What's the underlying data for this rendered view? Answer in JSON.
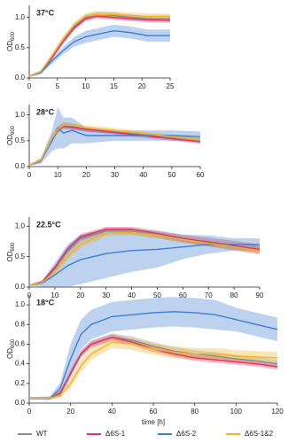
{
  "chart_data": [
    {
      "type": "line",
      "title": "37°C",
      "y_label": "OD",
      "y_label_sub": "600",
      "x": [
        0,
        2,
        4,
        6,
        8,
        10,
        12,
        15,
        18,
        21,
        25
      ],
      "xlim": [
        0,
        25
      ],
      "xticks": [
        0,
        5,
        10,
        15,
        20,
        25
      ],
      "ylim": [
        0,
        1.2
      ],
      "yticks": [
        {
          "value": 0,
          "label": "0.0"
        },
        {
          "value": 0.5,
          "label": "0.5"
        },
        {
          "value": 1,
          "label": "1.0"
        }
      ],
      "series": [
        {
          "name": "WT",
          "color": "#8c8c8c",
          "values": [
            0.03,
            0.1,
            0.35,
            0.62,
            0.85,
            1.0,
            1.05,
            1.03,
            1.0,
            0.98,
            0.98
          ],
          "error": [
            0.01,
            0.02,
            0.04,
            0.05,
            0.05,
            0.05,
            0.05,
            0.05,
            0.05,
            0.04,
            0.04
          ]
        },
        {
          "name": "Δ6S-1",
          "color": "#e0336a",
          "values": [
            0.03,
            0.1,
            0.33,
            0.6,
            0.83,
            0.98,
            1.02,
            1.0,
            0.98,
            0.96,
            0.95
          ],
          "error": [
            0.01,
            0.02,
            0.03,
            0.04,
            0.04,
            0.04,
            0.04,
            0.04,
            0.04,
            0.04,
            0.04
          ]
        },
        {
          "name": "Δ6S-2",
          "color": "#3f7fd0",
          "values": [
            0.03,
            0.08,
            0.28,
            0.45,
            0.6,
            0.68,
            0.72,
            0.78,
            0.75,
            0.7,
            0.7
          ],
          "error": [
            0.01,
            0.02,
            0.05,
            0.06,
            0.08,
            0.1,
            0.1,
            0.1,
            0.1,
            0.1,
            0.1
          ]
        },
        {
          "name": "Δ6S-1&2",
          "color": "#f0b429",
          "values": [
            0.03,
            0.1,
            0.36,
            0.64,
            0.88,
            1.02,
            1.05,
            1.05,
            1.03,
            1.02,
            1.02
          ],
          "error": [
            0.01,
            0.02,
            0.04,
            0.05,
            0.05,
            0.05,
            0.05,
            0.05,
            0.05,
            0.05,
            0.05
          ]
        }
      ]
    },
    {
      "type": "line",
      "title": "28°C",
      "y_label": "OD",
      "y_label_sub": "600",
      "x": [
        0,
        4,
        8,
        10,
        12,
        15,
        20,
        30,
        40,
        50,
        60
      ],
      "xlim": [
        0,
        60
      ],
      "xticks": [
        0,
        10,
        20,
        30,
        40,
        50,
        60
      ],
      "ylim": [
        0,
        1.2
      ],
      "yticks": [
        {
          "value": 0,
          "label": "0.0"
        },
        {
          "value": 0.5,
          "label": "0.5"
        },
        {
          "value": 1,
          "label": "1.0"
        }
      ],
      "series": [
        {
          "name": "WT",
          "color": "#8c8c8c",
          "values": [
            0.03,
            0.12,
            0.55,
            0.72,
            0.8,
            0.78,
            0.72,
            0.67,
            0.62,
            0.57,
            0.52
          ],
          "error": [
            0.01,
            0.03,
            0.06,
            0.06,
            0.06,
            0.05,
            0.05,
            0.04,
            0.04,
            0.04,
            0.04
          ]
        },
        {
          "name": "Δ6S-1",
          "color": "#e0336a",
          "values": [
            0.03,
            0.12,
            0.52,
            0.7,
            0.78,
            0.76,
            0.72,
            0.66,
            0.6,
            0.54,
            0.48
          ],
          "error": [
            0.01,
            0.03,
            0.05,
            0.05,
            0.05,
            0.05,
            0.04,
            0.04,
            0.04,
            0.04,
            0.04
          ]
        },
        {
          "name": "Δ6S-2",
          "color": "#3f7fd0",
          "values": [
            0.03,
            0.1,
            0.5,
            0.75,
            0.65,
            0.7,
            0.6,
            0.6,
            0.6,
            0.6,
            0.58
          ],
          "error": [
            0.01,
            0.05,
            0.2,
            0.4,
            0.3,
            0.25,
            0.15,
            0.1,
            0.1,
            0.1,
            0.1
          ]
        },
        {
          "name": "Δ6S-1&2",
          "color": "#f0b429",
          "values": [
            0.03,
            0.12,
            0.55,
            0.72,
            0.8,
            0.8,
            0.75,
            0.7,
            0.64,
            0.58,
            0.52
          ],
          "error": [
            0.01,
            0.03,
            0.06,
            0.06,
            0.06,
            0.05,
            0.05,
            0.05,
            0.04,
            0.04,
            0.04
          ]
        }
      ]
    },
    {
      "type": "line",
      "title": "22.5°C",
      "y_label": "OD",
      "y_label_sub": "600",
      "x": [
        0,
        5,
        10,
        15,
        20,
        30,
        40,
        50,
        60,
        70,
        80,
        90
      ],
      "xlim": [
        0,
        90
      ],
      "xticks": [
        0,
        10,
        20,
        30,
        40,
        50,
        60,
        70,
        80,
        90
      ],
      "ylim": [
        0,
        1.15
      ],
      "yticks": [
        {
          "value": 0,
          "label": "0.0"
        },
        {
          "value": 0.5,
          "label": "0.5"
        },
        {
          "value": 1,
          "label": "1.0"
        }
      ],
      "series": [
        {
          "name": "WT",
          "color": "#8c8c8c",
          "values": [
            0.03,
            0.08,
            0.3,
            0.6,
            0.8,
            0.92,
            0.92,
            0.85,
            0.78,
            0.72,
            0.67,
            0.62
          ],
          "error": [
            0.01,
            0.02,
            0.05,
            0.06,
            0.06,
            0.05,
            0.05,
            0.05,
            0.05,
            0.05,
            0.05,
            0.05
          ]
        },
        {
          "name": "Δ6S-1",
          "color": "#e0336a",
          "values": [
            0.03,
            0.08,
            0.32,
            0.62,
            0.82,
            0.95,
            0.95,
            0.88,
            0.8,
            0.74,
            0.68,
            0.62
          ],
          "error": [
            0.01,
            0.02,
            0.04,
            0.05,
            0.05,
            0.04,
            0.04,
            0.05,
            0.06,
            0.07,
            0.08,
            0.08
          ]
        },
        {
          "name": "Δ6S-2",
          "color": "#3f7fd0",
          "values": [
            0.03,
            0.06,
            0.2,
            0.35,
            0.45,
            0.55,
            0.6,
            0.62,
            0.66,
            0.7,
            0.7,
            0.7
          ],
          "error": [
            0.01,
            0.05,
            0.2,
            0.35,
            0.4,
            0.4,
            0.35,
            0.3,
            0.2,
            0.15,
            0.1,
            0.1
          ]
        },
        {
          "name": "Δ6S-1&2",
          "color": "#f0b429",
          "values": [
            0.03,
            0.07,
            0.25,
            0.5,
            0.7,
            0.88,
            0.9,
            0.85,
            0.78,
            0.72,
            0.66,
            0.6
          ],
          "error": [
            0.01,
            0.02,
            0.05,
            0.06,
            0.06,
            0.05,
            0.05,
            0.05,
            0.05,
            0.05,
            0.05,
            0.05
          ]
        }
      ]
    },
    {
      "type": "line",
      "title": "18°C",
      "y_label": "OD",
      "y_label_sub": "600",
      "x_label": "time [h]",
      "x": [
        0,
        10,
        15,
        20,
        25,
        30,
        40,
        50,
        60,
        70,
        80,
        90,
        100,
        110,
        120
      ],
      "xlim": [
        0,
        120
      ],
      "xticks": [
        0,
        20,
        40,
        60,
        80,
        100,
        120
      ],
      "ylim": [
        0,
        1.1
      ],
      "yticks": [
        {
          "value": 0,
          "label": "0.0"
        },
        {
          "value": 0.2,
          "label": "0.2"
        },
        {
          "value": 0.4,
          "label": "0.4"
        },
        {
          "value": 0.6,
          "label": "0.6"
        },
        {
          "value": 0.8,
          "label": "0.8"
        },
        {
          "value": 1,
          "label": "1.0"
        }
      ],
      "series": [
        {
          "name": "WT",
          "color": "#8c8c8c",
          "values": [
            0.05,
            0.05,
            0.1,
            0.3,
            0.5,
            0.6,
            0.67,
            0.64,
            0.58,
            0.53,
            0.5,
            0.48,
            0.45,
            0.43,
            0.4
          ],
          "error": [
            0.01,
            0.01,
            0.03,
            0.04,
            0.04,
            0.04,
            0.04,
            0.04,
            0.04,
            0.04,
            0.04,
            0.04,
            0.04,
            0.04,
            0.04
          ]
        },
        {
          "name": "Δ6S-1",
          "color": "#e0336a",
          "values": [
            0.05,
            0.05,
            0.1,
            0.3,
            0.5,
            0.6,
            0.67,
            0.62,
            0.55,
            0.5,
            0.46,
            0.44,
            0.42,
            0.4,
            0.37
          ],
          "error": [
            0.01,
            0.01,
            0.03,
            0.03,
            0.03,
            0.03,
            0.03,
            0.03,
            0.03,
            0.03,
            0.03,
            0.03,
            0.03,
            0.03,
            0.03
          ]
        },
        {
          "name": "Δ6S-2",
          "color": "#3f7fd0",
          "values": [
            0.05,
            0.05,
            0.15,
            0.45,
            0.7,
            0.8,
            0.88,
            0.9,
            0.92,
            0.93,
            0.92,
            0.9,
            0.85,
            0.8,
            0.75
          ],
          "error": [
            0.01,
            0.02,
            0.06,
            0.15,
            0.15,
            0.15,
            0.15,
            0.15,
            0.15,
            0.15,
            0.15,
            0.15,
            0.12,
            0.12,
            0.12
          ]
        },
        {
          "name": "Δ6S-1&2",
          "color": "#f0b429",
          "values": [
            0.05,
            0.05,
            0.08,
            0.2,
            0.38,
            0.5,
            0.62,
            0.6,
            0.55,
            0.52,
            0.5,
            0.5,
            0.48,
            0.47,
            0.46
          ],
          "error": [
            0.01,
            0.01,
            0.03,
            0.05,
            0.06,
            0.06,
            0.06,
            0.06,
            0.06,
            0.06,
            0.06,
            0.06,
            0.06,
            0.06,
            0.06
          ]
        }
      ]
    }
  ]
}
